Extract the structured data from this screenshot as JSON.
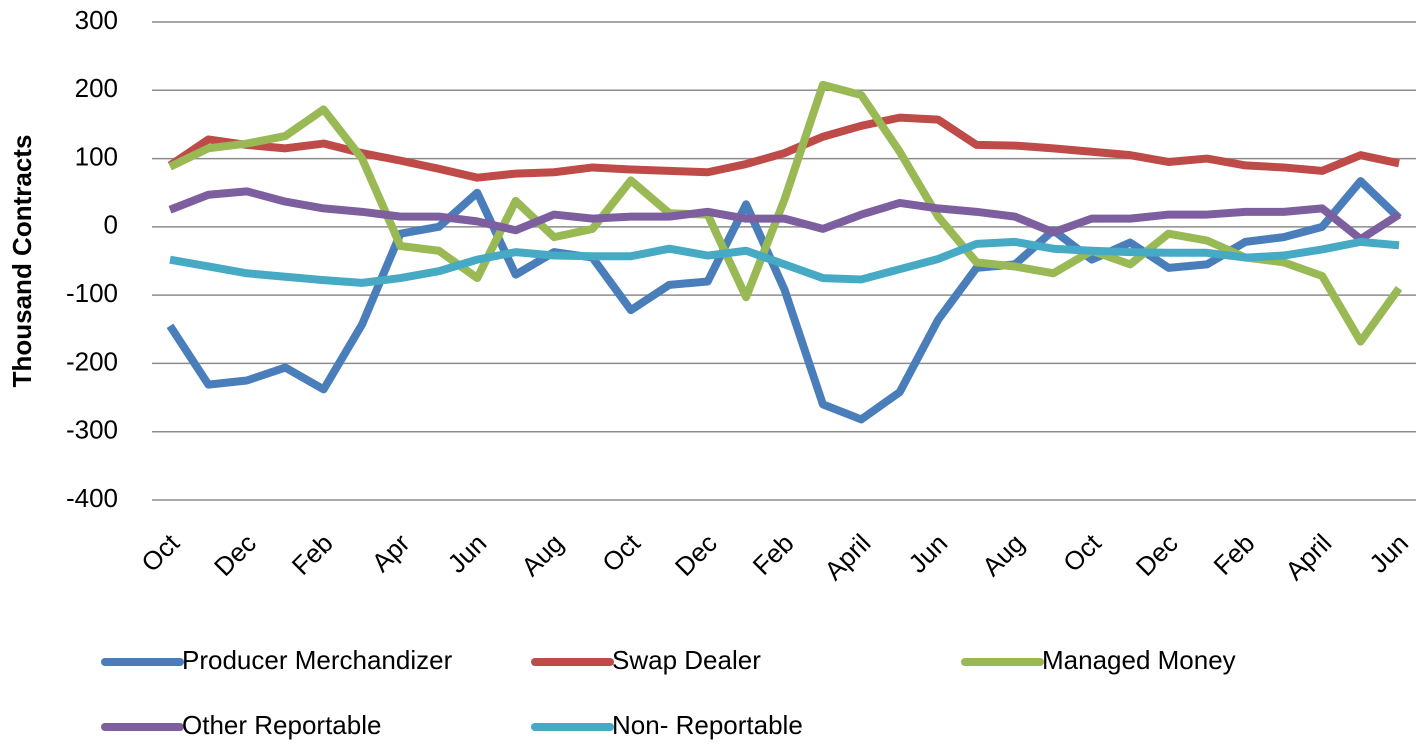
{
  "chart_data": {
    "type": "line",
    "y_label": "Thousand Contracts",
    "categories": [
      "Oct",
      null,
      "Dec",
      null,
      "Feb",
      null,
      "Apr",
      null,
      "Jun",
      null,
      "Aug",
      null,
      "Oct",
      null,
      "Dec",
      null,
      "Feb",
      null,
      "April",
      null,
      "Jun",
      null,
      "Aug",
      null,
      "Oct",
      null,
      "Dec",
      null,
      "Feb",
      null,
      "April",
      null,
      "Jun"
    ],
    "ylim": [
      -400,
      300
    ],
    "yticks": [
      -400,
      -300,
      -200,
      -100,
      0,
      100,
      200,
      300
    ],
    "grid": true,
    "legend": "bottom",
    "series": [
      {
        "name": "Producer Merchandizer",
        "color": "#4a7ebb",
        "values": [
          -145,
          -231,
          -225,
          -206,
          -238,
          -143,
          -10,
          0,
          50,
          -70,
          -37,
          -45,
          -122,
          -85,
          -80,
          33,
          -92,
          -260,
          -282,
          -242,
          -136,
          -60,
          -55,
          -5,
          -48,
          -23,
          -60,
          -55,
          -22,
          -15,
          0,
          67,
          13
        ]
      },
      {
        "name": "Swap Dealer",
        "color": "#be4b48",
        "values": [
          90,
          128,
          120,
          115,
          122,
          108,
          97,
          85,
          72,
          78,
          80,
          87,
          84,
          82,
          80,
          92,
          108,
          132,
          148,
          160,
          157,
          120,
          119,
          115,
          110,
          105,
          95,
          100,
          90,
          87,
          82,
          105,
          93
        ]
      },
      {
        "name": "Managed Money",
        "color": "#98b954",
        "values": [
          88,
          115,
          122,
          133,
          172,
          100,
          -28,
          -35,
          -75,
          38,
          -15,
          -3,
          68,
          20,
          18,
          -103,
          40,
          208,
          193,
          110,
          15,
          -52,
          -58,
          -68,
          -35,
          -55,
          -10,
          -20,
          -45,
          -52,
          -72,
          -168,
          -90
        ]
      },
      {
        "name": "Other Reportable",
        "color": "#7d5fa0",
        "values": [
          25,
          47,
          52,
          37,
          27,
          22,
          15,
          15,
          8,
          -5,
          18,
          12,
          15,
          15,
          22,
          12,
          12,
          -3,
          18,
          35,
          27,
          22,
          15,
          -8,
          12,
          12,
          18,
          18,
          22,
          22,
          27,
          -18,
          18
        ]
      },
      {
        "name": "Non- Reportable",
        "color": "#46aac5",
        "values": [
          -48,
          -58,
          -68,
          -73,
          -78,
          -82,
          -75,
          -65,
          -48,
          -37,
          -42,
          -43,
          -43,
          -32,
          -42,
          -35,
          -55,
          -75,
          -77,
          -62,
          -47,
          -25,
          -22,
          -32,
          -35,
          -37,
          -38,
          -38,
          -45,
          -42,
          -33,
          -22,
          -27
        ]
      }
    ]
  }
}
